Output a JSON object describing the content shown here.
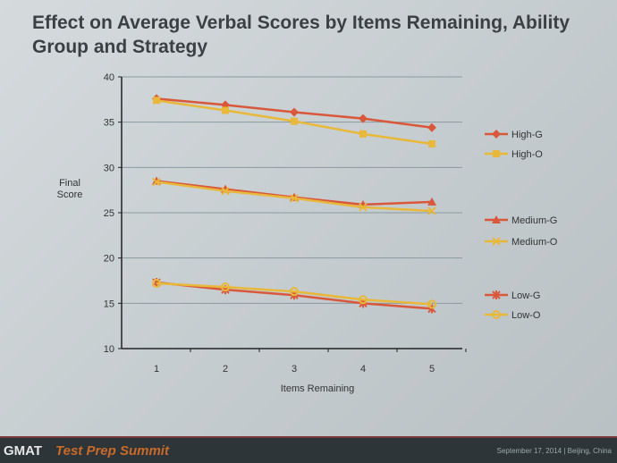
{
  "slide": {
    "title": "Effect on Average Verbal Scores by Items Remaining, Ability Group and Strategy",
    "footer_brand_gmat": "GMAT",
    "footer_brand_event": "Test Prep Summit",
    "footer_date": "September 17, 2014 | Beijing, China"
  },
  "chart_data": {
    "type": "line",
    "title": "Effect on Average Verbal Scores by Items Remaining, Ability Group and Strategy",
    "xlabel": "Items Remaining",
    "ylabel": "Final Score",
    "x": [
      1,
      2,
      3,
      4,
      5
    ],
    "ylim": [
      10,
      40
    ],
    "yticks": [
      10,
      15,
      20,
      25,
      30,
      35,
      40
    ],
    "grid": true,
    "legend": "right",
    "series": [
      {
        "name": "High-G",
        "color": "#d9573a",
        "marker": "diamond",
        "values": [
          37.6,
          36.9,
          36.1,
          35.4,
          34.4
        ]
      },
      {
        "name": "High-O",
        "color": "#e8b83a",
        "marker": "square",
        "values": [
          37.4,
          36.3,
          35.1,
          33.7,
          32.6
        ]
      },
      {
        "name": "Medium-G",
        "color": "#d9573a",
        "marker": "triangle",
        "values": [
          28.5,
          27.6,
          26.7,
          25.9,
          26.2
        ]
      },
      {
        "name": "Medium-O",
        "color": "#e8b83a",
        "marker": "x",
        "values": [
          28.4,
          27.4,
          26.6,
          25.6,
          25.2
        ]
      },
      {
        "name": "Low-G",
        "color": "#d9573a",
        "marker": "star",
        "values": [
          17.3,
          16.5,
          15.9,
          15.0,
          14.4
        ]
      },
      {
        "name": "Low-O",
        "color": "#e8b83a",
        "marker": "circle",
        "values": [
          17.2,
          16.8,
          16.3,
          15.4,
          14.9
        ]
      }
    ]
  }
}
